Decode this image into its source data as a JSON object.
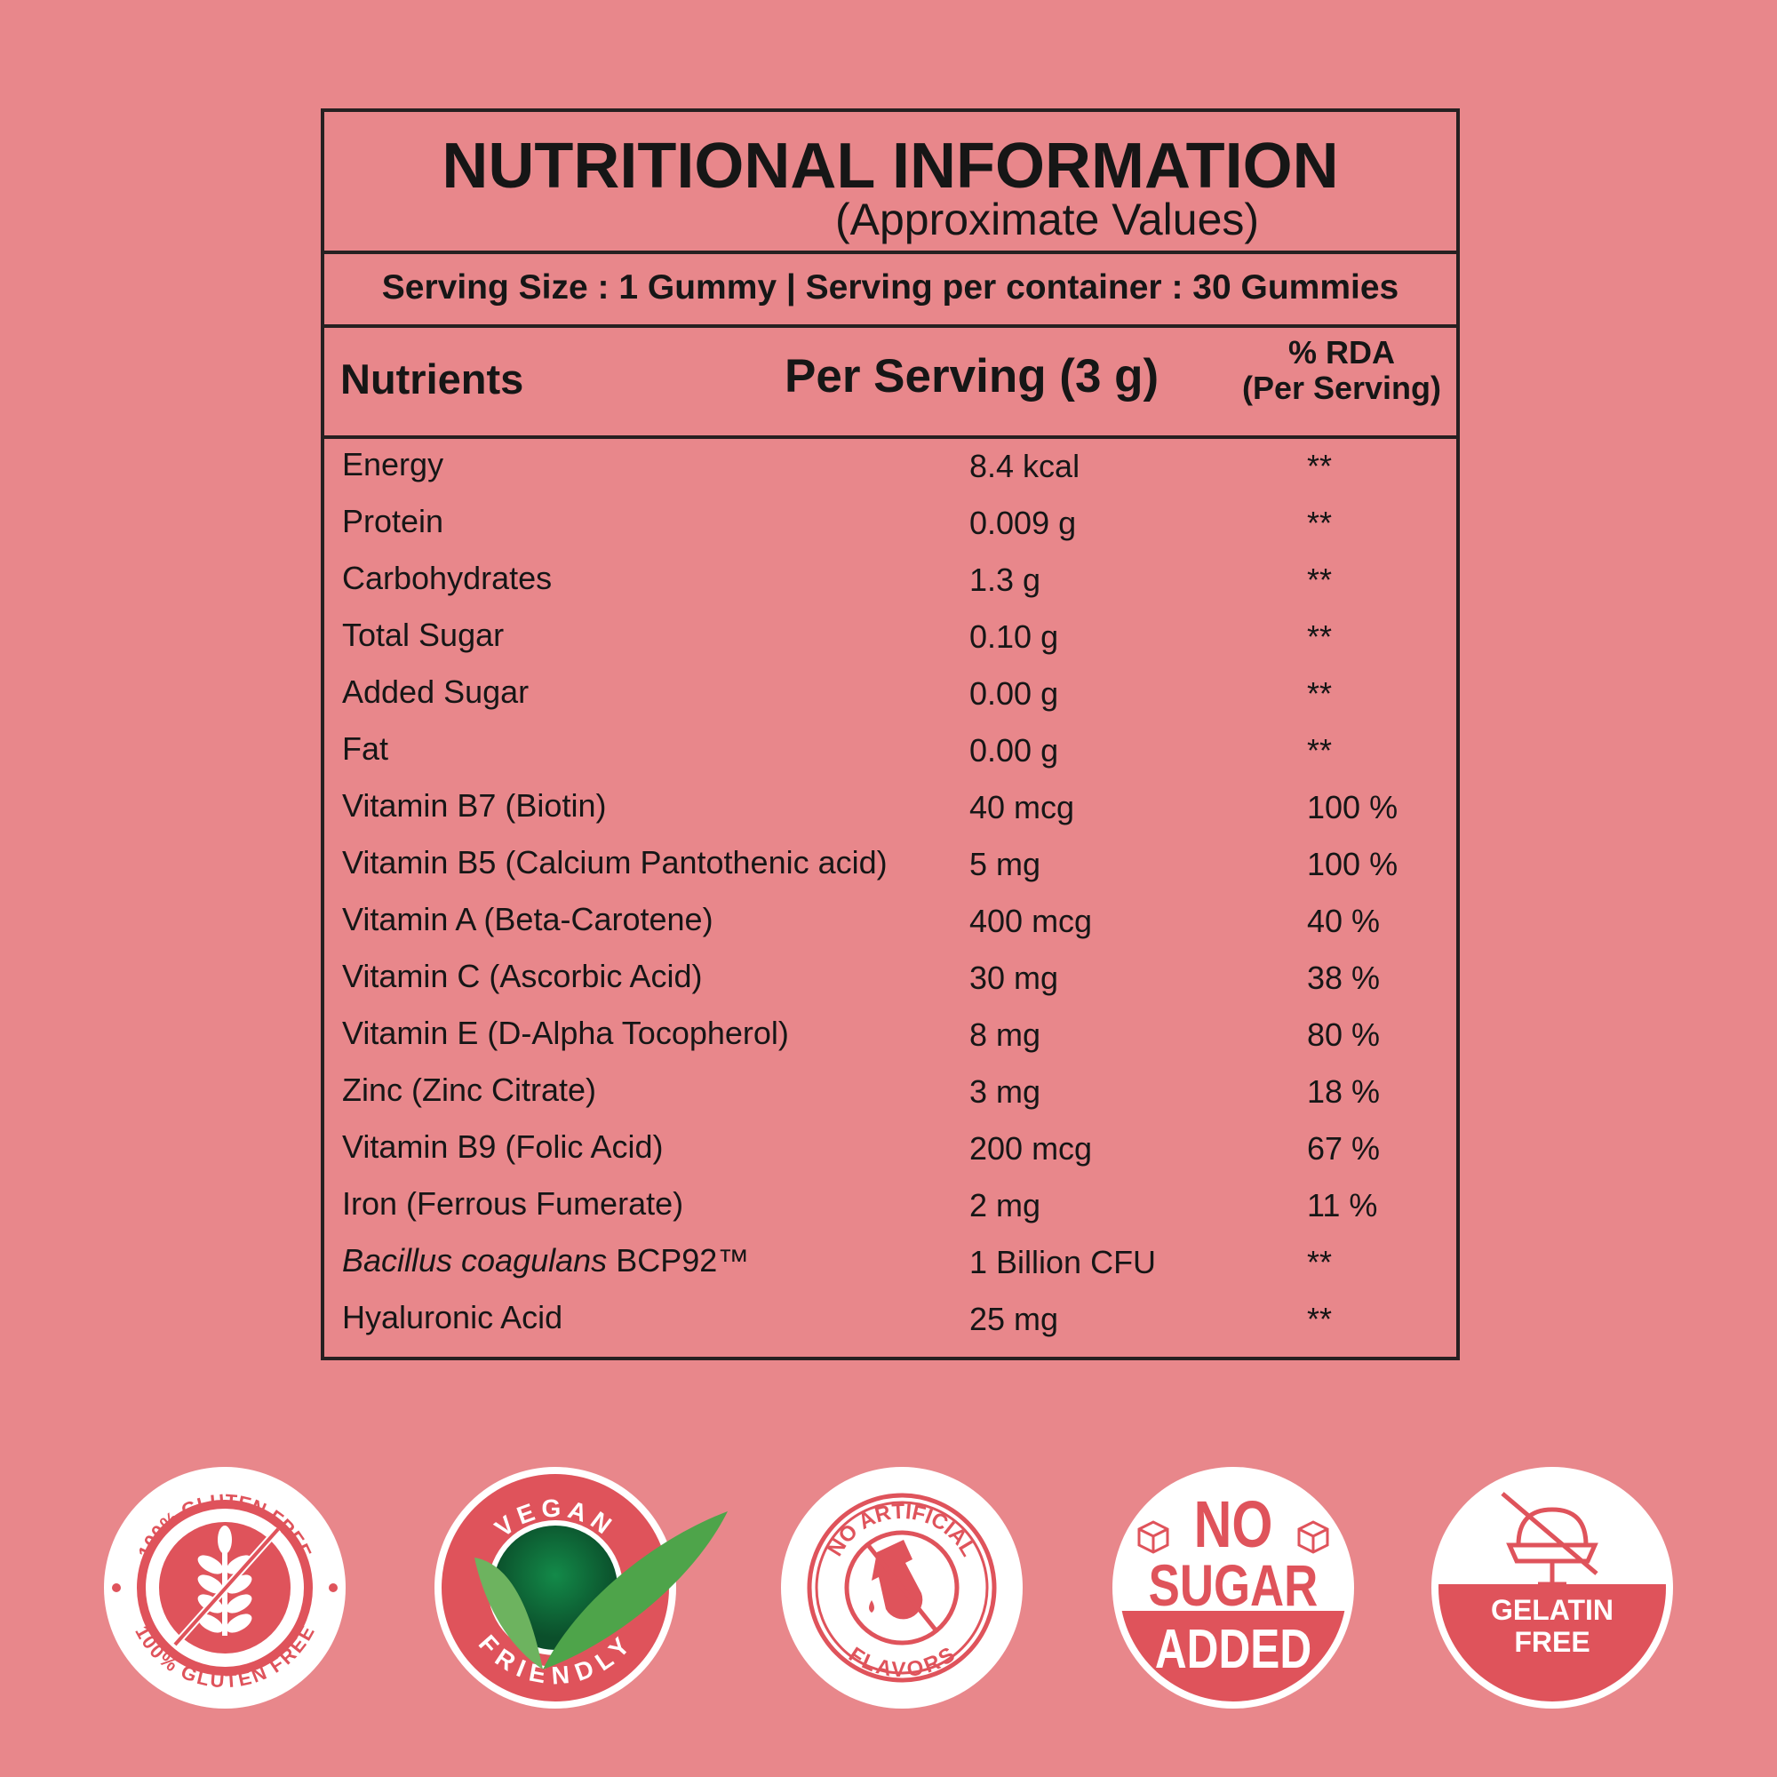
{
  "title": "NUTRITIONAL INFORMATION",
  "subtitle": "(Approximate Values)",
  "serving_line": "Serving Size : 1 Gummy | Serving per container : 30 Gummies",
  "headers": {
    "nutrients": "Nutrients",
    "per_serving": "Per Serving (3 g)",
    "rda_line1": "% RDA",
    "rda_line2": "(Per Serving)"
  },
  "rows": [
    {
      "name": "Energy",
      "value": "8.4 kcal",
      "rda": "**"
    },
    {
      "name": "Protein",
      "value": "0.009 g",
      "rda": "**"
    },
    {
      "name": "Carbohydrates",
      "value": "1.3 g",
      "rda": "**"
    },
    {
      "name": "Total Sugar",
      "value": "0.10 g",
      "rda": "**"
    },
    {
      "name": "Added Sugar",
      "value": "0.00 g",
      "rda": "**"
    },
    {
      "name": "Fat",
      "value": "0.00 g",
      "rda": "**"
    },
    {
      "name": "Vitamin B7 (Biotin)",
      "value": "40 mcg",
      "rda": "100 %"
    },
    {
      "name": "Vitamin B5 (Calcium Pantothenic acid)",
      "value": "5 mg",
      "rda": "100 %"
    },
    {
      "name": "Vitamin A (Beta-Carotene)",
      "value": "400 mcg",
      "rda": "40 %"
    },
    {
      "name": "Vitamin C (Ascorbic Acid)",
      "value": "30 mg",
      "rda": "38 %"
    },
    {
      "name": "Vitamin E (D-Alpha Tocopherol)",
      "value": "8 mg",
      "rda": "80 %"
    },
    {
      "name": "Zinc (Zinc Citrate)",
      "value": "3 mg",
      "rda": "18 %"
    },
    {
      "name": "Vitamin B9 (Folic Acid)",
      "value": "200 mcg",
      "rda": "67 %"
    },
    {
      "name": "Iron (Ferrous Fumerate)",
      "value": "2 mg",
      "rda": "11 %"
    },
    {
      "name_italic": "Bacillus coagulans",
      "name": " BCP92™",
      "value": "1 Billion CFU",
      "rda": "**"
    },
    {
      "name": "Hyaluronic Acid",
      "value": "25 mg",
      "rda": "**"
    }
  ],
  "badges": {
    "gluten": {
      "top": "100% GLUTEN FREE",
      "bottom": "100% GLUTEN FREE"
    },
    "vegan": {
      "top": "VEGAN",
      "bottom": "FRIENDLY"
    },
    "artificial": {
      "top": "NO ARTIFICIAL",
      "bottom": "FLAVORS"
    },
    "sugar": {
      "line1": "NO",
      "line2": "SUGAR",
      "line3": "ADDED"
    },
    "gelatin": {
      "line1": "GELATIN",
      "line2": "FREE"
    }
  },
  "colors": {
    "background": "#e8878b",
    "badge_red": "#df535b",
    "text": "#161616"
  }
}
